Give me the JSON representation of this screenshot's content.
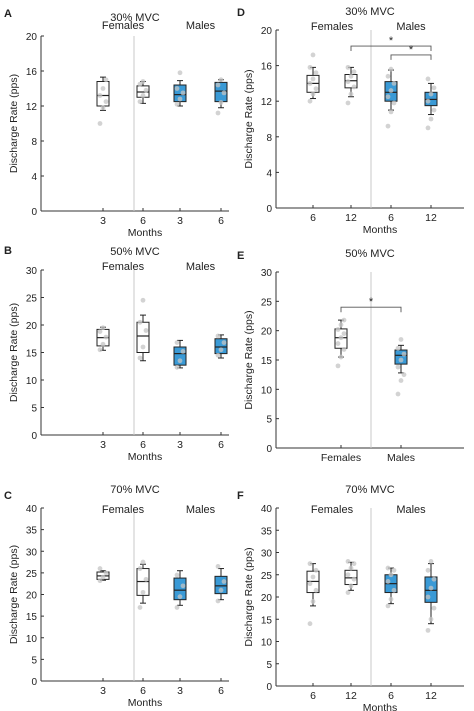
{
  "colors": {
    "female_box": "#ffffff",
    "male_box": "#3a9ad6",
    "point": "#c4c4c4",
    "axis": "#333333",
    "divider": "#c8c8c8"
  },
  "chart_data": [
    {
      "panel": "A",
      "type": "box",
      "title": "30% MVC",
      "ylabel": "Discharge Rate (pps)",
      "xlabel": "Months",
      "ylim": [
        0,
        20
      ],
      "yticks": [
        0,
        4,
        8,
        12,
        16,
        20
      ],
      "groups": [
        {
          "label": "Females",
          "categories": [
            0,
            1
          ]
        },
        {
          "label": "Males",
          "categories": [
            2,
            3
          ]
        }
      ],
      "categories": [
        {
          "tick": "3",
          "sex": "female",
          "q1": 12.0,
          "median": 13.2,
          "q3": 14.8,
          "whisker_low": 11.5,
          "whisker_high": 15.3,
          "points": [
            10.0,
            11.8,
            12.5,
            13.2,
            14.0,
            15.0
          ]
        },
        {
          "tick": "6",
          "sex": "female",
          "q1": 13.0,
          "median": 13.6,
          "q3": 14.3,
          "whisker_low": 12.3,
          "whisker_high": 14.8,
          "points": [
            12.5,
            13.2,
            13.8,
            14.5,
            14.8
          ]
        },
        {
          "tick": "3",
          "sex": "male",
          "q1": 12.5,
          "median": 13.3,
          "q3": 14.4,
          "whisker_low": 12.0,
          "whisker_high": 14.9,
          "points": [
            12.2,
            12.8,
            13.5,
            14.0,
            15.8
          ]
        },
        {
          "tick": "6",
          "sex": "male",
          "q1": 12.5,
          "median": 13.7,
          "q3": 14.7,
          "whisker_low": 11.8,
          "whisker_high": 15.0,
          "points": [
            11.2,
            12.4,
            13.5,
            14.4,
            15.0
          ]
        }
      ],
      "significance": []
    },
    {
      "panel": "D",
      "type": "box",
      "title": "30% MVC",
      "ylabel": "Discharge Rate (pps)",
      "xlabel": "Months",
      "ylim": [
        0,
        20
      ],
      "yticks": [
        0,
        4,
        8,
        12,
        16,
        20
      ],
      "groups": [
        {
          "label": "Females",
          "categories": [
            0,
            1
          ]
        },
        {
          "label": "Males",
          "categories": [
            2,
            3
          ]
        }
      ],
      "categories": [
        {
          "tick": "6",
          "sex": "female",
          "q1": 13.0,
          "median": 14.0,
          "q3": 14.9,
          "whisker_low": 12.3,
          "whisker_high": 15.8,
          "points": [
            12.0,
            12.8,
            13.4,
            14.0,
            14.5,
            15.2,
            15.8,
            17.2
          ]
        },
        {
          "tick": "12",
          "sex": "female",
          "q1": 13.5,
          "median": 14.3,
          "q3": 15.0,
          "whisker_low": 12.5,
          "whisker_high": 15.8,
          "points": [
            11.8,
            12.8,
            13.6,
            14.2,
            14.8,
            15.3,
            15.8
          ]
        },
        {
          "tick": "6",
          "sex": "male",
          "q1": 12.0,
          "median": 13.0,
          "q3": 14.2,
          "whisker_low": 11.0,
          "whisker_high": 15.5,
          "points": [
            9.2,
            10.8,
            11.8,
            12.5,
            13.2,
            14.0,
            14.8,
            15.6
          ]
        },
        {
          "tick": "12",
          "sex": "male",
          "q1": 11.5,
          "median": 12.2,
          "q3": 13.0,
          "whisker_low": 10.5,
          "whisker_high": 14.0,
          "points": [
            9.0,
            10.0,
            11.0,
            12.0,
            12.8,
            13.5,
            14.5
          ]
        }
      ],
      "significance": [
        {
          "from": 1,
          "to": 3,
          "y": 18.2,
          "label": "*"
        },
        {
          "from": 2,
          "to": 3,
          "y": 17.2,
          "label": "*"
        }
      ]
    },
    {
      "panel": "B",
      "type": "box",
      "title": "50% MVC",
      "ylabel": "Discharge Rate (pps)",
      "xlabel": "Months",
      "ylim": [
        0,
        30
      ],
      "yticks": [
        0,
        5,
        10,
        15,
        20,
        25,
        30
      ],
      "groups": [
        {
          "label": "Females",
          "categories": [
            0,
            1
          ]
        },
        {
          "label": "Males",
          "categories": [
            2,
            3
          ]
        }
      ],
      "categories": [
        {
          "tick": "3",
          "sex": "female",
          "q1": 16.2,
          "median": 17.7,
          "q3": 19.2,
          "whisker_low": 15.4,
          "whisker_high": 19.6,
          "points": [
            15.5,
            16.5,
            17.8,
            18.8,
            19.5
          ]
        },
        {
          "tick": "6",
          "sex": "female",
          "q1": 15.0,
          "median": 18.0,
          "q3": 20.5,
          "whisker_low": 13.5,
          "whisker_high": 21.8,
          "points": [
            14.0,
            16.0,
            19.0,
            20.5,
            24.5
          ]
        },
        {
          "tick": "3",
          "sex": "male",
          "q1": 12.7,
          "median": 14.8,
          "q3": 16.0,
          "whisker_low": 12.2,
          "whisker_high": 17.2,
          "points": [
            12.3,
            13.5,
            15.2,
            16.8
          ]
        },
        {
          "tick": "6",
          "sex": "male",
          "q1": 14.8,
          "median": 16.0,
          "q3": 17.5,
          "whisker_low": 14.0,
          "whisker_high": 18.2,
          "points": [
            14.5,
            15.5,
            16.8,
            18.0
          ]
        }
      ],
      "significance": []
    },
    {
      "panel": "E",
      "type": "box",
      "title": "50% MVC",
      "ylabel": "Discharge Rate (pps)",
      "xlabel": "",
      "ylim": [
        0,
        30
      ],
      "yticks": [
        0,
        5,
        10,
        15,
        20,
        25,
        30
      ],
      "groups": [],
      "categories": [
        {
          "tick": "Females",
          "sex": "female",
          "q1": 17.0,
          "median": 18.8,
          "q3": 20.3,
          "whisker_low": 15.5,
          "whisker_high": 21.8,
          "points": [
            14.0,
            15.5,
            16.8,
            17.8,
            18.8,
            19.5,
            20.2,
            21.0,
            21.8
          ]
        },
        {
          "tick": "Males",
          "sex": "male",
          "q1": 14.3,
          "median": 15.8,
          "q3": 16.7,
          "whisker_low": 12.8,
          "whisker_high": 17.5,
          "points": [
            9.2,
            11.5,
            12.5,
            13.8,
            15.0,
            16.0,
            17.0,
            18.5
          ]
        }
      ],
      "significance": [
        {
          "from": 0,
          "to": 1,
          "y": 24.0,
          "label": "*"
        }
      ]
    },
    {
      "panel": "C",
      "type": "box",
      "title": "70% MVC",
      "ylabel": "Discharge Rate (pps)",
      "xlabel": "Months",
      "ylim": [
        0,
        40
      ],
      "yticks": [
        0,
        5,
        10,
        15,
        20,
        25,
        30,
        35,
        40
      ],
      "groups": [
        {
          "label": "Females",
          "categories": [
            0,
            1
          ]
        },
        {
          "label": "Males",
          "categories": [
            2,
            3
          ]
        }
      ],
      "categories": [
        {
          "tick": "3",
          "sex": "female",
          "q1": 23.5,
          "median": 24.3,
          "q3": 25.2,
          "whisker_low": 23.3,
          "whisker_high": 25.5,
          "points": [
            23.2,
            24.0,
            25.0,
            26.0
          ]
        },
        {
          "tick": "6",
          "sex": "female",
          "q1": 19.8,
          "median": 23.0,
          "q3": 26.0,
          "whisker_low": 18.0,
          "whisker_high": 27.0,
          "points": [
            17.0,
            20.5,
            23.5,
            26.0,
            27.5
          ]
        },
        {
          "tick": "3",
          "sex": "male",
          "q1": 18.8,
          "median": 21.0,
          "q3": 23.8,
          "whisker_low": 17.5,
          "whisker_high": 25.5,
          "points": [
            17.0,
            19.5,
            22.0,
            24.5
          ]
        },
        {
          "tick": "6",
          "sex": "male",
          "q1": 20.2,
          "median": 22.0,
          "q3": 24.2,
          "whisker_low": 18.8,
          "whisker_high": 26.0,
          "points": [
            18.5,
            21.0,
            23.0,
            26.5
          ]
        }
      ],
      "significance": []
    },
    {
      "panel": "F",
      "type": "box",
      "title": "70% MVC",
      "ylabel": "Discharge Rate (pps)",
      "xlabel": "Months",
      "ylim": [
        0,
        40
      ],
      "yticks": [
        0,
        5,
        10,
        15,
        20,
        25,
        30,
        35,
        40
      ],
      "groups": [
        {
          "label": "Females",
          "categories": [
            0,
            1
          ]
        },
        {
          "label": "Males",
          "categories": [
            2,
            3
          ]
        }
      ],
      "categories": [
        {
          "tick": "6",
          "sex": "female",
          "q1": 21.0,
          "median": 23.5,
          "q3": 25.8,
          "whisker_low": 18.0,
          "whisker_high": 27.5,
          "points": [
            14.0,
            19.0,
            21.5,
            23.0,
            24.5,
            26.0,
            27.5
          ]
        },
        {
          "tick": "12",
          "sex": "female",
          "q1": 22.8,
          "median": 24.3,
          "q3": 26.0,
          "whisker_low": 21.5,
          "whisker_high": 27.8,
          "points": [
            21.0,
            22.5,
            24.0,
            25.0,
            26.5,
            27.5,
            28.0
          ]
        },
        {
          "tick": "6",
          "sex": "male",
          "q1": 21.0,
          "median": 23.0,
          "q3": 25.0,
          "whisker_low": 18.5,
          "whisker_high": 26.5,
          "points": [
            18.0,
            19.5,
            21.5,
            23.5,
            25.0,
            26.0,
            26.5
          ]
        },
        {
          "tick": "12",
          "sex": "male",
          "q1": 18.8,
          "median": 21.5,
          "q3": 24.5,
          "whisker_low": 14.0,
          "whisker_high": 27.5,
          "points": [
            12.5,
            15.0,
            17.5,
            20.0,
            22.0,
            24.0,
            26.0,
            28.0
          ]
        }
      ],
      "significance": []
    }
  ]
}
